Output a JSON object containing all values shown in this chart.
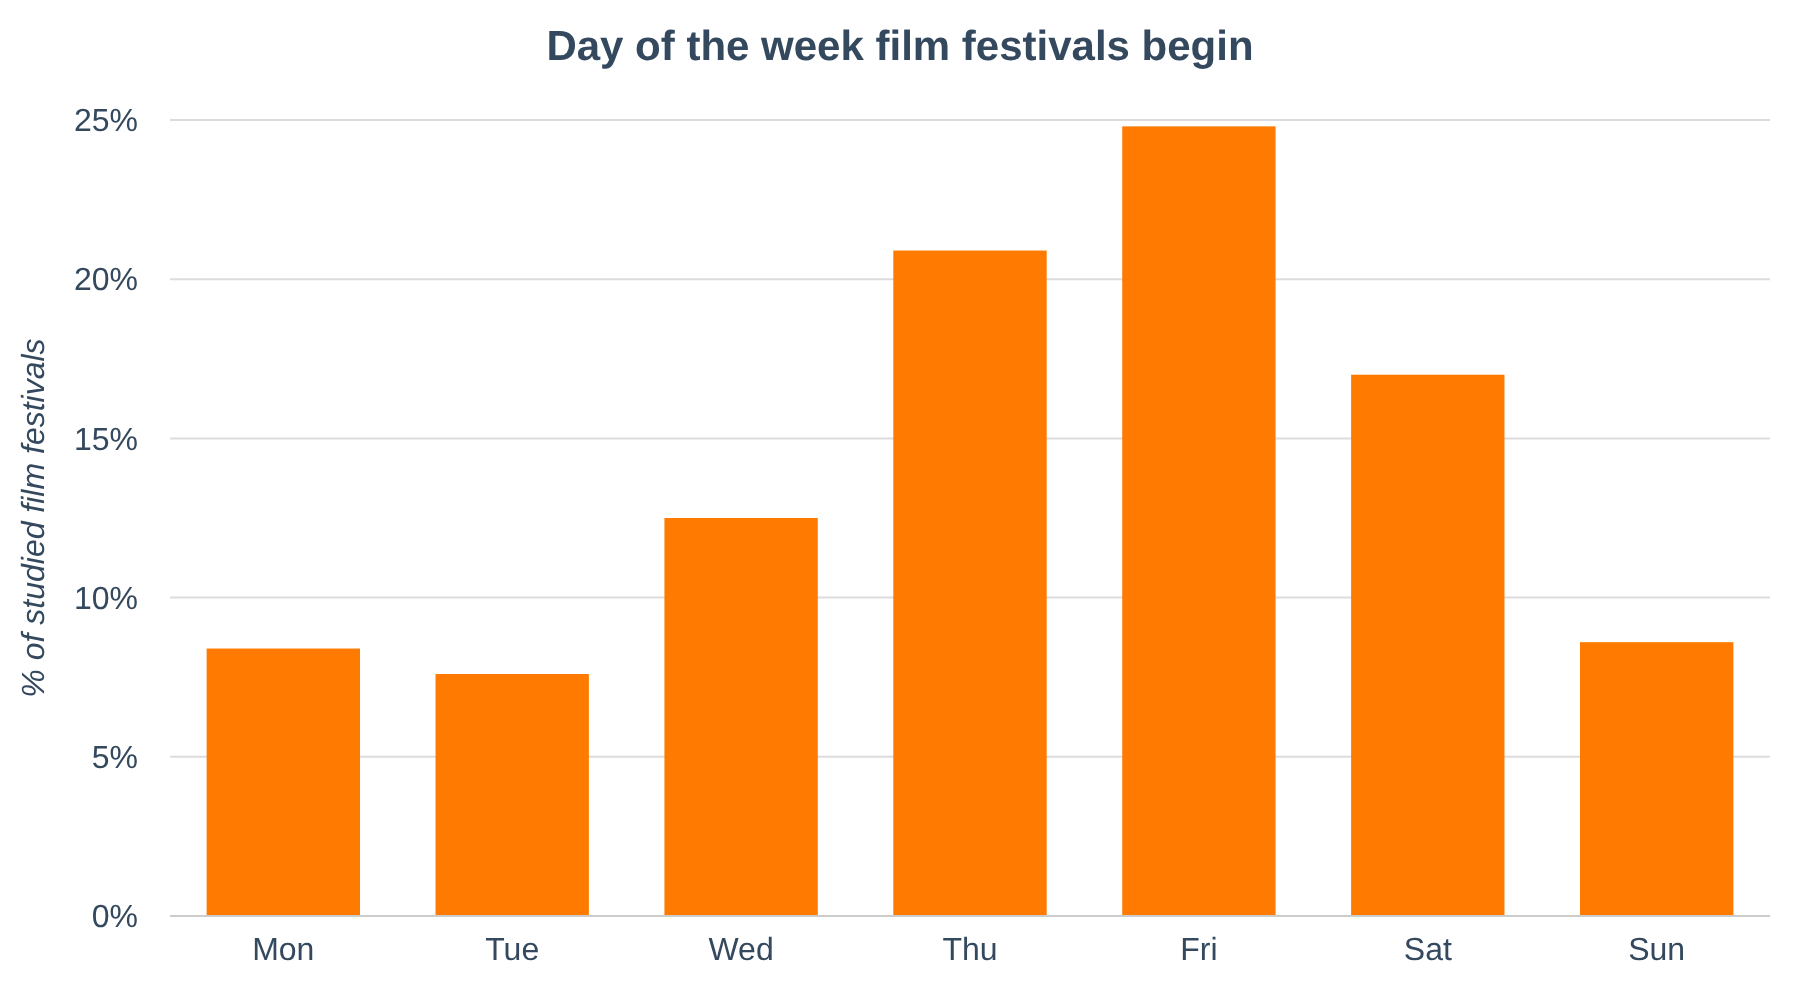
{
  "chart_data": {
    "type": "bar",
    "title": "Day of the week film festivals begin",
    "ylabel": "% of studied film festivals",
    "categories": [
      "Mon",
      "Tue",
      "Wed",
      "Thu",
      "Fri",
      "Sat",
      "Sun"
    ],
    "values": [
      8.4,
      7.6,
      12.5,
      20.9,
      24.8,
      17.0,
      8.6
    ],
    "color": "#fe7a00",
    "ylim": [
      0,
      25
    ],
    "yticks": [
      {
        "value": 0,
        "label": "0%"
      },
      {
        "value": 5,
        "label": "5%"
      },
      {
        "value": 10,
        "label": "10%"
      },
      {
        "value": 15,
        "label": "15%"
      },
      {
        "value": 20,
        "label": "20%"
      },
      {
        "value": 25,
        "label": "25%"
      }
    ],
    "grid": "y"
  }
}
